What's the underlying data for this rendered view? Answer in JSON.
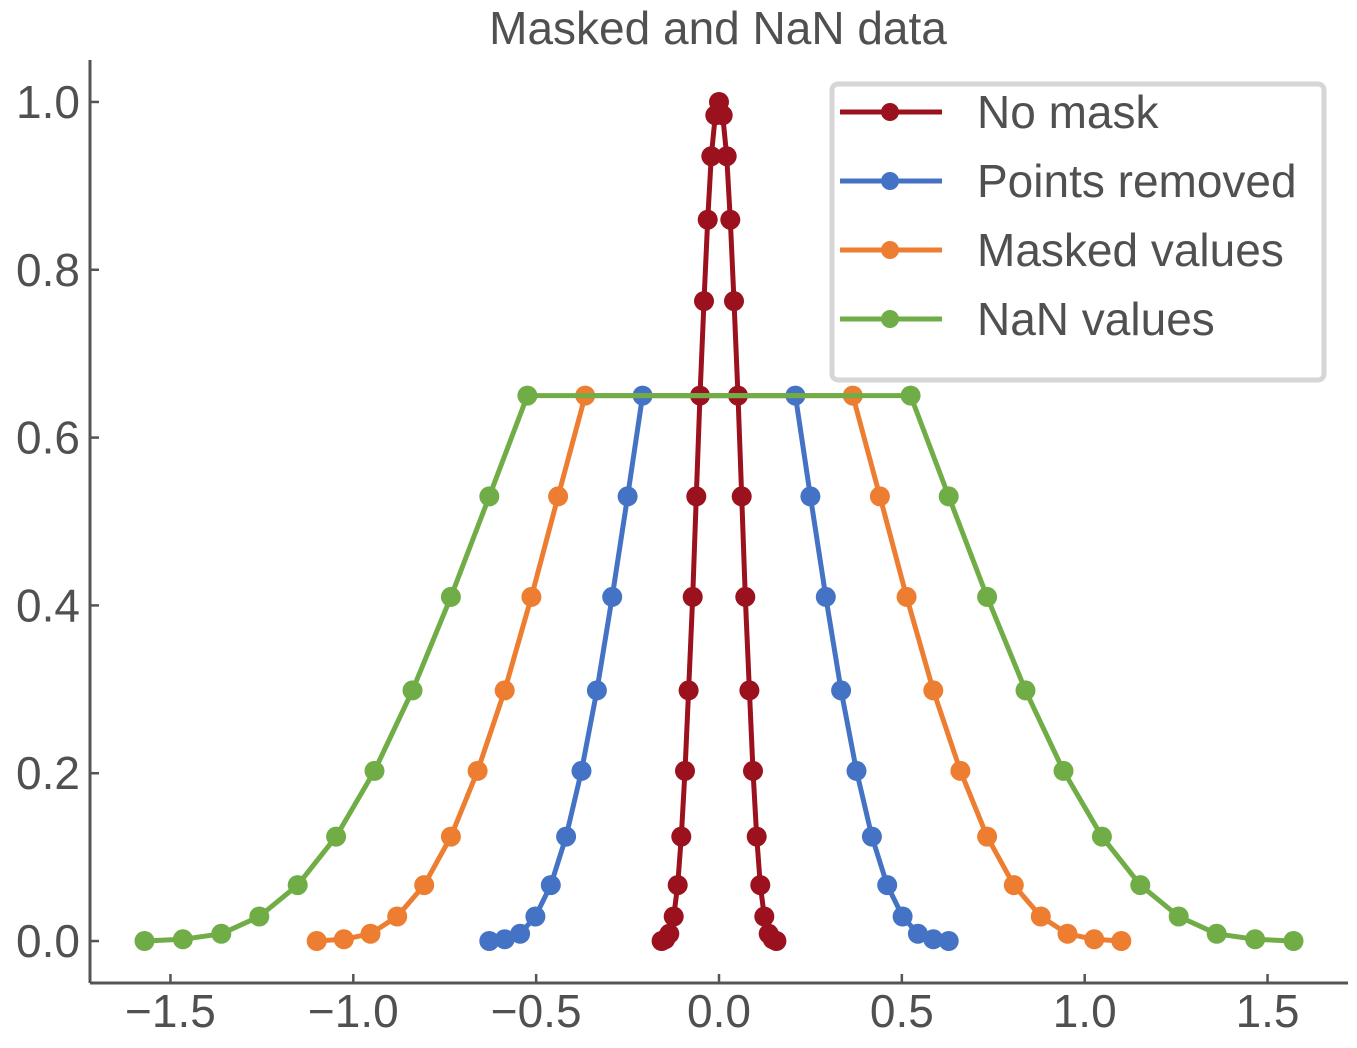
{
  "chart_data": {
    "type": "line",
    "title": "Masked and NaN data",
    "xlabel": "",
    "ylabel": "",
    "xlim": [
      -1.72,
      1.72
    ],
    "ylim": [
      -0.05,
      1.05
    ],
    "x_ticks": [
      -1.5,
      -1.0,
      -0.5,
      0.0,
      0.5,
      1.0,
      1.5
    ],
    "x_tick_labels": [
      "−1.5",
      "−1.0",
      "−0.5",
      "0.0",
      "0.5",
      "1.0",
      "1.5"
    ],
    "y_ticks": [
      0.0,
      0.2,
      0.4,
      0.6,
      0.8,
      1.0
    ],
    "y_tick_labels": [
      "0.0",
      "0.2",
      "0.4",
      "0.6",
      "0.8",
      "1.0"
    ],
    "grid": false,
    "legend_position": "top-right",
    "series": [
      {
        "name": "No mask",
        "color": "#9b111e",
        "points": [
          [
            -0.157,
            0.0
          ],
          [
            -0.147,
            0.0021
          ],
          [
            -0.136,
            0.0086
          ],
          [
            -0.124,
            0.0293
          ],
          [
            -0.113,
            0.0667
          ],
          [
            -0.103,
            0.1245
          ],
          [
            -0.093,
            0.2028
          ],
          [
            -0.083,
            0.2987
          ],
          [
            -0.072,
            0.4102
          ],
          [
            -0.062,
            0.5299
          ],
          [
            -0.052,
            0.6501
          ],
          [
            -0.041,
            0.7627
          ],
          [
            -0.031,
            0.8597
          ],
          [
            -0.021,
            0.9354
          ],
          [
            -0.01,
            0.9841
          ],
          [
            0.0,
            1.0
          ],
          [
            0.01,
            0.9841
          ],
          [
            0.021,
            0.9354
          ],
          [
            0.031,
            0.8597
          ],
          [
            0.041,
            0.7627
          ],
          [
            0.052,
            0.6501
          ],
          [
            0.062,
            0.5299
          ],
          [
            0.072,
            0.4102
          ],
          [
            0.083,
            0.2987
          ],
          [
            0.093,
            0.2028
          ],
          [
            0.103,
            0.1245
          ],
          [
            0.113,
            0.0667
          ],
          [
            0.124,
            0.0293
          ],
          [
            0.136,
            0.0086
          ],
          [
            0.147,
            0.0021
          ],
          [
            0.157,
            0.0
          ]
        ]
      },
      {
        "name": "Points removed",
        "color": "#4472c4",
        "points": [
          [
            -0.628,
            0.0
          ],
          [
            -0.586,
            0.0021
          ],
          [
            -0.544,
            0.0086
          ],
          [
            -0.502,
            0.0293
          ],
          [
            -0.46,
            0.0667
          ],
          [
            -0.418,
            0.1245
          ],
          [
            -0.376,
            0.2028
          ],
          [
            -0.334,
            0.2987
          ],
          [
            -0.292,
            0.4102
          ],
          [
            -0.25,
            0.5299
          ],
          [
            -0.209,
            0.6501
          ],
          [
            0.209,
            0.6501
          ],
          [
            0.25,
            0.5299
          ],
          [
            0.292,
            0.4102
          ],
          [
            0.334,
            0.2987
          ],
          [
            0.376,
            0.2028
          ],
          [
            0.418,
            0.1245
          ],
          [
            0.46,
            0.0667
          ],
          [
            0.502,
            0.0293
          ],
          [
            0.544,
            0.0086
          ],
          [
            0.586,
            0.0021
          ],
          [
            0.628,
            0.0
          ]
        ]
      },
      {
        "name": "Masked values",
        "color": "#ed7d31",
        "points": [
          [
            -1.1,
            0.0
          ],
          [
            -1.026,
            0.0021
          ],
          [
            -0.953,
            0.0086
          ],
          [
            -0.88,
            0.0293
          ],
          [
            -0.806,
            0.0667
          ],
          [
            -0.733,
            0.1245
          ],
          [
            -0.66,
            0.2028
          ],
          [
            -0.586,
            0.2987
          ],
          [
            -0.513,
            0.4102
          ],
          [
            -0.44,
            0.5299
          ],
          [
            -0.366,
            0.6501
          ],
          [
            0.366,
            0.6501
          ],
          [
            0.44,
            0.5299
          ],
          [
            0.513,
            0.4102
          ],
          [
            0.586,
            0.2987
          ],
          [
            0.66,
            0.2028
          ],
          [
            0.733,
            0.1245
          ],
          [
            0.806,
            0.0667
          ],
          [
            0.88,
            0.0293
          ],
          [
            0.953,
            0.0086
          ],
          [
            1.026,
            0.0021
          ],
          [
            1.1,
            0.0
          ]
        ]
      },
      {
        "name": "NaN values",
        "color": "#70ad47",
        "points": [
          [
            -1.571,
            0.0
          ],
          [
            -1.466,
            0.0021
          ],
          [
            -1.361,
            0.0086
          ],
          [
            -1.257,
            0.0293
          ],
          [
            -1.152,
            0.0667
          ],
          [
            -1.047,
            0.1245
          ],
          [
            -0.942,
            0.2028
          ],
          [
            -0.838,
            0.2987
          ],
          [
            -0.733,
            0.4102
          ],
          [
            -0.628,
            0.5299
          ],
          [
            -0.524,
            0.6501
          ],
          [
            0.524,
            0.6501
          ],
          [
            0.628,
            0.5299
          ],
          [
            0.733,
            0.4102
          ],
          [
            0.838,
            0.2987
          ],
          [
            0.942,
            0.2028
          ],
          [
            1.047,
            0.1245
          ],
          [
            1.152,
            0.0667
          ],
          [
            1.257,
            0.0293
          ],
          [
            1.361,
            0.0086
          ],
          [
            1.466,
            0.0021
          ],
          [
            1.571,
            0.0
          ]
        ]
      }
    ]
  }
}
